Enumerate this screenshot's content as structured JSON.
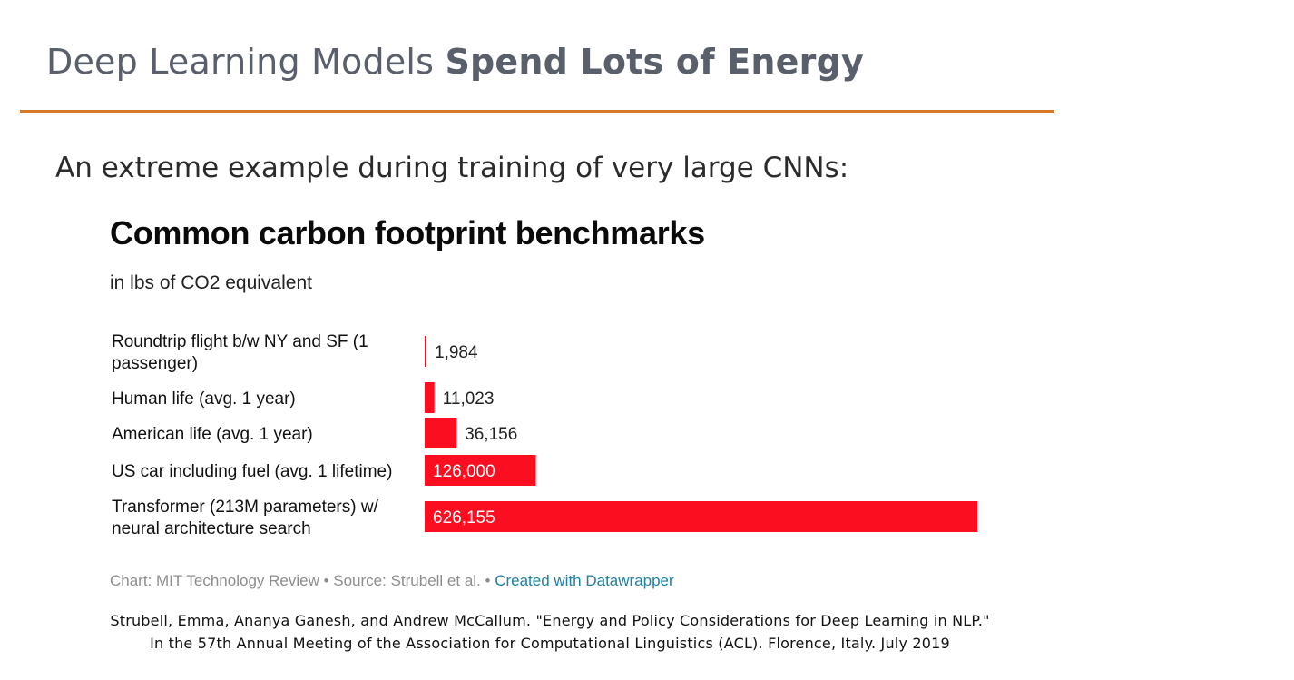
{
  "slide": {
    "title_regular": "Deep Learning Models ",
    "title_bold": "Spend Lots of Energy",
    "subtitle": "An extreme example during training of very large CNNs:",
    "citation_line1": "Strubell, Emma, Ananya Ganesh, and Andrew McCallum. \"Energy and Policy Considerations for Deep Learning in NLP.\"",
    "citation_line2": "In the 57th Annual Meeting of the Association for Computational Linguistics (ACL). Florence, Italy. July 2019"
  },
  "colors": {
    "accent_rule": "#d7772a",
    "bar": "#fa0e20",
    "credit_link": "#1d81a2"
  },
  "chart_data": {
    "type": "bar",
    "orientation": "horizontal",
    "title": "Common carbon footprint benchmarks",
    "subtitle": "in lbs of CO2 equivalent",
    "categories": [
      "Roundtrip flight b/w NY and SF (1 passenger)",
      "Human life (avg. 1 year)",
      "American life (avg. 1 year)",
      "US car including fuel (avg. 1 lifetime)",
      "Transformer (213M parameters) w/ neural architecture search"
    ],
    "category_lines": [
      [
        "Roundtrip flight b/w NY and SF (1",
        "passenger)"
      ],
      [
        "Human life (avg. 1 year)"
      ],
      [
        "American life (avg. 1 year)"
      ],
      [
        "US car including fuel (avg. 1 lifetime)"
      ],
      [
        "Transformer (213M parameters) w/",
        "neural architecture search"
      ]
    ],
    "values": [
      1984,
      11023,
      36156,
      126000,
      626155
    ],
    "value_labels": [
      "1,984",
      "11,023",
      "36,156",
      "126,000",
      "626,155"
    ],
    "xlim": [
      0,
      626155
    ],
    "grid": false,
    "credit_text": "Chart: MIT Technology Review • Source: Strubell et al. • ",
    "credit_link": "Created with Datawrapper"
  }
}
